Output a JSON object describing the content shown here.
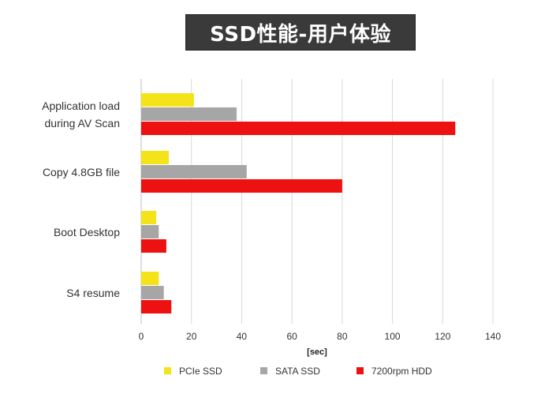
{
  "header": {
    "title": "SSD性能-用户体验"
  },
  "chart_data": {
    "type": "bar",
    "orientation": "horizontal",
    "title": "SSD性能-用户体验",
    "xlabel": "[sec]",
    "xlim": [
      0,
      140
    ],
    "xticks": [
      0,
      20,
      40,
      60,
      80,
      100,
      120,
      140
    ],
    "grid": "vertical",
    "legend_position": "bottom",
    "categories": [
      [
        "Application load",
        "during AV Scan"
      ],
      [
        "Copy 4.8GB file"
      ],
      [
        "Boot Desktop"
      ],
      [
        "S4 resume"
      ]
    ],
    "series": [
      {
        "name": "PCIe SSD",
        "color": "#f5e31a",
        "values": [
          21,
          11,
          6,
          7
        ]
      },
      {
        "name": "SATA SSD",
        "color": "#a6a6a6",
        "values": [
          38,
          42,
          7,
          9
        ]
      },
      {
        "name": "7200rpm HDD",
        "color": "#ee1111",
        "values": [
          125,
          80,
          10,
          12
        ]
      }
    ]
  }
}
